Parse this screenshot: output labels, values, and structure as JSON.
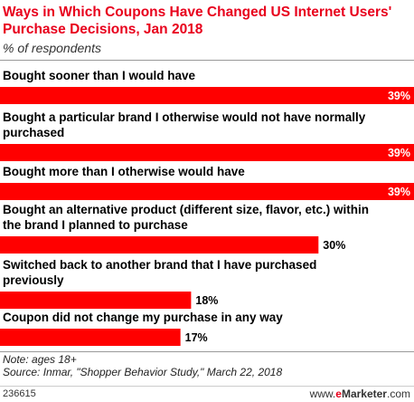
{
  "header": {
    "title": "Ways in Which Coupons Have Changed US Internet Users' Purchase Decisions, Jan 2018",
    "subtitle": "% of respondents"
  },
  "chart_data": {
    "type": "bar",
    "orientation": "horizontal",
    "title": "Ways in Which Coupons Have Changed US Internet Users' Purchase Decisions, Jan 2018",
    "subtitle": "% of respondents",
    "categories": [
      [
        "Bought sooner than I would have"
      ],
      [
        "Bought a particular brand I otherwise would not have normally",
        "purchased"
      ],
      [
        "Bought more than I otherwise would have"
      ],
      [
        "Bought an alternative product (different size, flavor, etc.) within",
        "the brand I planned to purchase"
      ],
      [
        "Switched back to another brand that I have purchased",
        "previously"
      ],
      [
        "Coupon did not change my purchase in any way"
      ]
    ],
    "values": [
      39,
      39,
      39,
      30,
      18,
      17
    ],
    "value_labels": [
      "39%",
      "39%",
      "39%",
      "30%",
      "18%",
      "17%"
    ],
    "xlim": [
      0,
      39
    ],
    "bar_color": "#ff0000",
    "grid": false,
    "legend": "none"
  },
  "footer": {
    "note": "Note: ages 18+",
    "source": "Source: Inmar, \"Shopper Behavior Study,\" March 22, 2018",
    "chart_id": "236615",
    "brand_www": "www.",
    "brand_e": "e",
    "brand_name": "Marketer",
    "brand_com": ".com"
  }
}
